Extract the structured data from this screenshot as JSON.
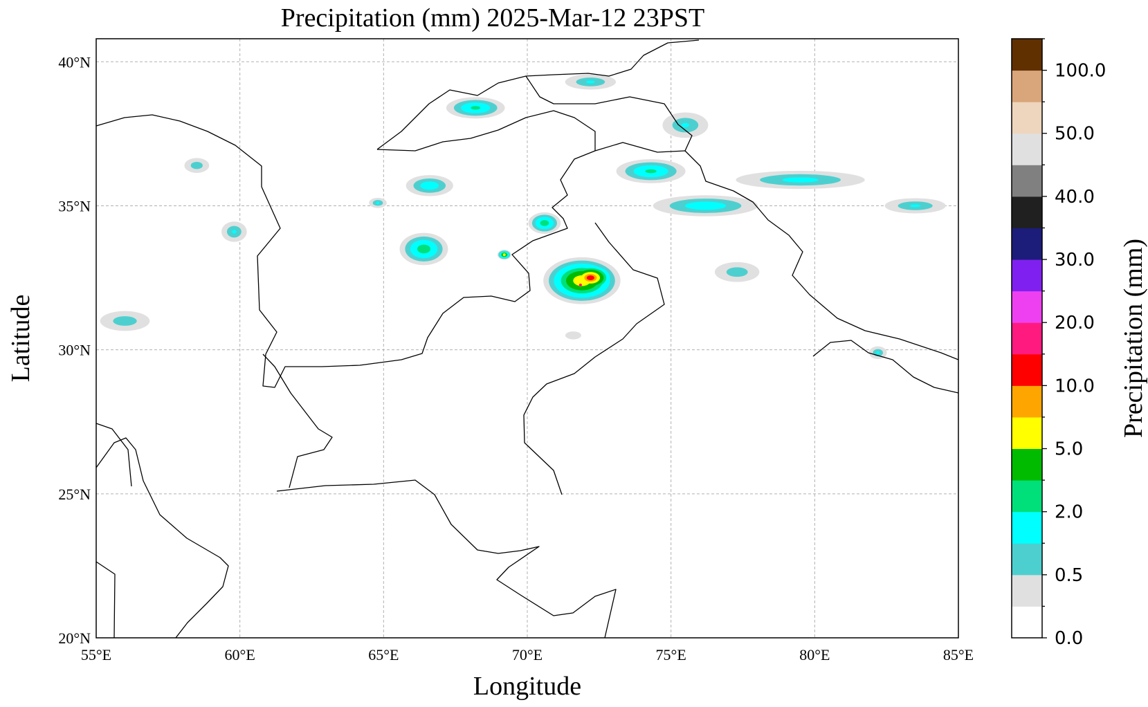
{
  "title": "Precipitation (mm)  2025-Mar-12 23PST",
  "map": {
    "xlabel": "Longitude",
    "ylabel": "Latitude",
    "lon_range": [
      55,
      85
    ],
    "lat_range": [
      20,
      40.8
    ],
    "grid": true,
    "x_ticks": [
      {
        "value": 55,
        "label": "55°E"
      },
      {
        "value": 60,
        "label": "60°E"
      },
      {
        "value": 65,
        "label": "65°E"
      },
      {
        "value": 70,
        "label": "70°E"
      },
      {
        "value": 75,
        "label": "75°E"
      },
      {
        "value": 80,
        "label": "80°E"
      },
      {
        "value": 85,
        "label": "85°E"
      }
    ],
    "y_ticks": [
      {
        "value": 20,
        "label": "20°N"
      },
      {
        "value": 25,
        "label": "25°N"
      },
      {
        "value": 30,
        "label": "30°N"
      },
      {
        "value": 35,
        "label": "35°N"
      },
      {
        "value": 40,
        "label": "40°N"
      }
    ]
  },
  "colorbar": {
    "label": "Precipitation (mm)",
    "levels": [
      {
        "color": "#ffffff"
      },
      {
        "color": "#e0e0e0"
      },
      {
        "color": "#4ecfcf"
      },
      {
        "color": "#00ffff"
      },
      {
        "color": "#00e07a"
      },
      {
        "color": "#00bb00"
      },
      {
        "color": "#ffff00"
      },
      {
        "color": "#ffa500"
      },
      {
        "color": "#ff0000"
      },
      {
        "color": "#ff1a80"
      },
      {
        "color": "#ee40f0"
      },
      {
        "color": "#8020f0"
      },
      {
        "color": "#1c1c7a"
      },
      {
        "color": "#202020"
      },
      {
        "color": "#808080"
      },
      {
        "color": "#e0e0e0"
      },
      {
        "color": "#eed5bd"
      },
      {
        "color": "#d9a57a"
      },
      {
        "color": "#603000"
      }
    ],
    "tick_labels": [
      "0.0",
      "0.5",
      "2.0",
      "5.0",
      "10.0",
      "20.0",
      "30.0",
      "40.0",
      "50.0",
      "100.0"
    ]
  },
  "precip_cells": [
    {
      "lon": 71.9,
      "lat": 32.4,
      "rx": 1.4,
      "ry": 0.85,
      "mm": 6
    },
    {
      "lon": 72.2,
      "lat": 32.5,
      "rx": 0.9,
      "ry": 0.55,
      "mm": 10
    },
    {
      "lon": 71.85,
      "lat": 32.25,
      "rx": 0.12,
      "ry": 0.12,
      "mm": 15
    },
    {
      "lon": 70.6,
      "lat": 34.4,
      "rx": 0.6,
      "ry": 0.4,
      "mm": 2.5
    },
    {
      "lon": 69.2,
      "lat": 33.3,
      "rx": 0.25,
      "ry": 0.18,
      "mm": 5
    },
    {
      "lon": 66.4,
      "lat": 33.5,
      "rx": 0.9,
      "ry": 0.6,
      "mm": 2.5
    },
    {
      "lon": 66.6,
      "lat": 35.7,
      "rx": 0.9,
      "ry": 0.4,
      "mm": 1.5
    },
    {
      "lon": 68.2,
      "lat": 38.4,
      "rx": 1.1,
      "ry": 0.4,
      "mm": 2
    },
    {
      "lon": 74.3,
      "lat": 36.2,
      "rx": 1.3,
      "ry": 0.45,
      "mm": 2
    },
    {
      "lon": 76.2,
      "lat": 35.0,
      "rx": 2.0,
      "ry": 0.4,
      "mm": 1.5
    },
    {
      "lon": 79.5,
      "lat": 35.9,
      "rx": 2.5,
      "ry": 0.35,
      "mm": 1.2
    },
    {
      "lon": 83.5,
      "lat": 35.0,
      "rx": 1.2,
      "ry": 0.3,
      "mm": 1
    },
    {
      "lon": 72.2,
      "lat": 39.3,
      "rx": 1.0,
      "ry": 0.3,
      "mm": 1
    },
    {
      "lon": 75.5,
      "lat": 37.8,
      "rx": 0.9,
      "ry": 0.5,
      "mm": 1
    },
    {
      "lon": 77.3,
      "lat": 32.7,
      "rx": 0.9,
      "ry": 0.4,
      "mm": 0.8
    },
    {
      "lon": 59.8,
      "lat": 34.1,
      "rx": 0.5,
      "ry": 0.4,
      "mm": 1
    },
    {
      "lon": 58.5,
      "lat": 36.4,
      "rx": 0.5,
      "ry": 0.3,
      "mm": 0.8
    },
    {
      "lon": 56.0,
      "lat": 31.0,
      "rx": 1.0,
      "ry": 0.4,
      "mm": 0.8
    },
    {
      "lon": 82.2,
      "lat": 29.9,
      "rx": 0.35,
      "ry": 0.25,
      "mm": 1
    },
    {
      "lon": 64.8,
      "lat": 35.1,
      "rx": 0.35,
      "ry": 0.2,
      "mm": 1
    },
    {
      "lon": 71.6,
      "lat": 30.5,
      "rx": 0.4,
      "ry": 0.2,
      "mm": 0.3
    }
  ]
}
